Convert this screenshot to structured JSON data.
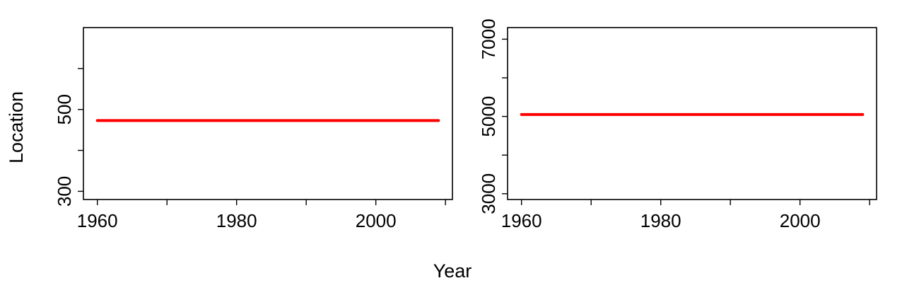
{
  "figure": {
    "xlabel": "Year",
    "ylabel": "Location"
  },
  "chart_data": [
    {
      "type": "line",
      "xlim": [
        1958,
        2011
      ],
      "ylim": [
        280,
        700
      ],
      "x_ticks": [
        1960,
        1970,
        1980,
        1990,
        2000,
        2010
      ],
      "x_tick_labels": [
        "1960",
        "",
        "1980",
        "",
        "2000",
        ""
      ],
      "y_ticks": [
        300,
        400,
        500,
        600
      ],
      "y_tick_labels": [
        "300",
        "",
        "500",
        ""
      ],
      "series": [
        {
          "color": "#ff0000",
          "x": [
            1960,
            2009
          ],
          "y": [
            473,
            473
          ]
        }
      ]
    },
    {
      "type": "line",
      "xlim": [
        1958,
        2011
      ],
      "ylim": [
        2850,
        7300
      ],
      "x_ticks": [
        1960,
        1970,
        1980,
        1990,
        2000,
        2010
      ],
      "x_tick_labels": [
        "1960",
        "",
        "1980",
        "",
        "2000",
        ""
      ],
      "y_ticks": [
        3000,
        4000,
        5000,
        6000,
        7000
      ],
      "y_tick_labels": [
        "3000",
        "",
        "5000",
        "",
        "7000"
      ],
      "series": [
        {
          "color": "#ff0000",
          "x": [
            1960,
            2009
          ],
          "y": [
            5050,
            5050
          ]
        }
      ]
    }
  ]
}
